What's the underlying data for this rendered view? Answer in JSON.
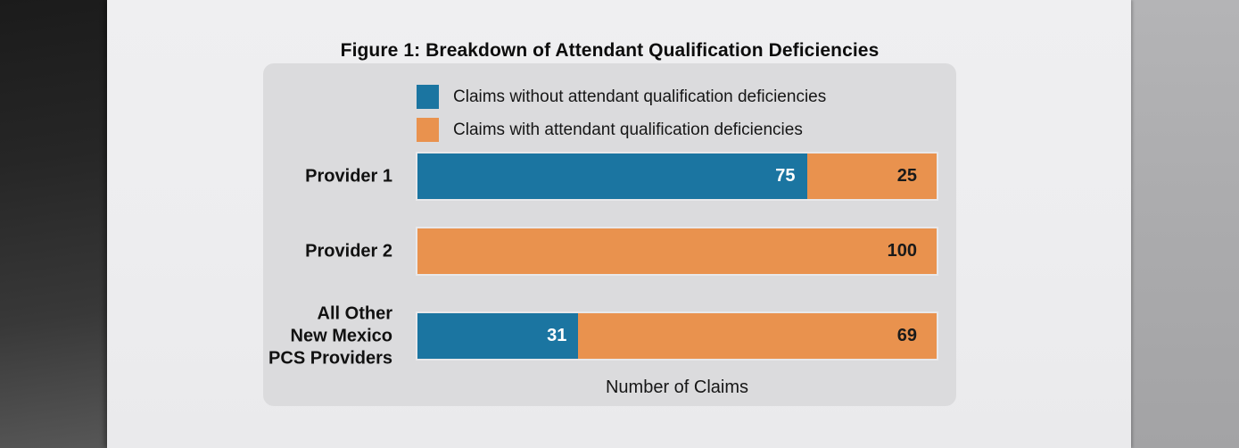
{
  "chart_data": {
    "type": "bar",
    "orientation": "horizontal",
    "stacked": true,
    "title": "Figure 1: Breakdown of Attendant Qualification Deficiencies",
    "xlabel": "Number of Claims",
    "xlim": [
      0,
      100
    ],
    "grid": false,
    "legend_position": "top-inside",
    "categories": [
      "Provider 1",
      "Provider 2",
      "All Other New Mexico PCS Providers"
    ],
    "category_label_lines": [
      [
        "Provider 1"
      ],
      [
        "Provider 2"
      ],
      [
        "All Other",
        "New Mexico",
        "PCS Providers"
      ]
    ],
    "series": [
      {
        "name": "Claims without attendant qualification deficiencies",
        "color": "#1b75a1",
        "value_label_color": "#ffffff",
        "values": [
          75,
          0,
          31
        ]
      },
      {
        "name": "Claims with attendant qualification deficiencies",
        "color": "#e9924e",
        "value_label_color": "#1a1a1a",
        "values": [
          25,
          100,
          69
        ]
      }
    ]
  },
  "colors": {
    "page": "#ededef",
    "panel": "#dbdbdd",
    "blue": "#1b75a1",
    "orange": "#e9924e",
    "title_text": "#0d0d0d"
  }
}
